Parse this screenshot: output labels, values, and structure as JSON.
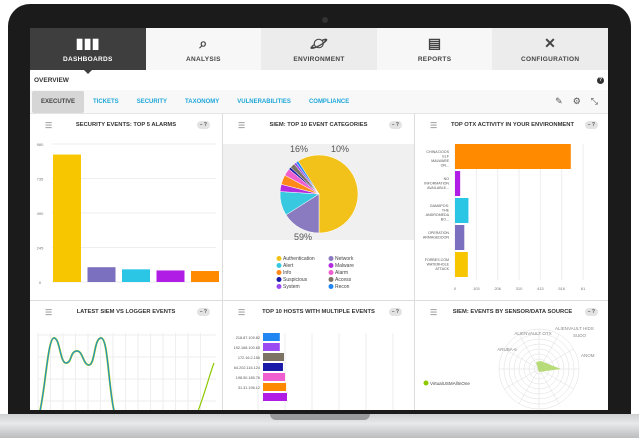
{
  "nav": [
    {
      "label": "DASHBOARDS",
      "icon": "bar-chart-icon",
      "active": true
    },
    {
      "label": "ANALYSIS",
      "icon": "magnifier-chart-icon"
    },
    {
      "label": "ENVIRONMENT",
      "icon": "planet-icon"
    },
    {
      "label": "REPORTS",
      "icon": "report-icon"
    },
    {
      "label": "CONFIGURATION",
      "icon": "tools-icon"
    }
  ],
  "overview": {
    "title": "OVERVIEW",
    "help": "?"
  },
  "subtabs": [
    "EXECUTIVE",
    "TICKETS",
    "SECURITY",
    "TAXONOMY",
    "VULNERABILITIES",
    "COMPLIANCE"
  ],
  "panel_ctl": "– ?",
  "chart_data": [
    {
      "type": "bar",
      "title": "SECURITY EVENTS: TOP 5 ALARMS",
      "ylim": [
        0,
        980
      ],
      "yticks": [
        "0",
        "245",
        "490",
        "735",
        "980"
      ],
      "values": [
        905,
        105,
        90,
        82,
        78
      ],
      "colors": [
        "#f7c600",
        "#7b6fbf",
        "#2bc6e6",
        "#b01ee6",
        "#ff8a00"
      ]
    },
    {
      "type": "pie",
      "title": "SIEM: TOP 10 EVENT CATEGORIES",
      "labels_shown": [
        "59%",
        "16%",
        "10%"
      ],
      "categories": [
        "Authentication",
        "Network",
        "Alert",
        "Malware",
        "Info",
        "Alarm",
        "Suspicious",
        "Access",
        "System",
        "Recon"
      ],
      "values": [
        59,
        16,
        10,
        3,
        4,
        3,
        1,
        2,
        1,
        1
      ],
      "colors": [
        "#f2c21b",
        "#8a7bc0",
        "#38c8e0",
        "#b42ce0",
        "#ff8a1a",
        "#f05fcf",
        "#1a1aa8",
        "#7d7364",
        "#9a4cf2",
        "#1f86f2"
      ]
    },
    {
      "type": "bar",
      "orientation": "horizontal",
      "title": "TOP OTX ACTIVITY IN YOUR ENVIRONMENT",
      "xticks": [
        "0",
        "103",
        "206",
        "310",
        "413",
        "516",
        "61"
      ],
      "xlim": [
        0,
        619
      ],
      "categories": [
        "CHINA DOOS ELF MALWARE ON...",
        "NO INFORMATION AVAILABLE...",
        "GAMAPOS: THE ANDROMEDA BO...",
        "OPERATION ARMAGEDDON",
        "FORBES.COM WATERHOLE ATTACK"
      ],
      "values": [
        560,
        25,
        65,
        45,
        62
      ],
      "colors": [
        "#ff8a00",
        "#b01ee6",
        "#2bc6e6",
        "#7b6fbf",
        "#f7c600"
      ]
    },
    {
      "type": "line",
      "title": "LATEST SIEM VS LOGGER EVENTS"
    },
    {
      "type": "bar",
      "orientation": "horizontal",
      "title": "TOP 10 HOSTS WITH MULTIPLE EVENTS",
      "categories": [
        "218.87.109.82",
        "192.168.100.65",
        "172.16.2.156",
        "64.202.116.124",
        "198.50.185.76",
        "31.31.196.12"
      ],
      "values": [
        16,
        16,
        20,
        19,
        21,
        22
      ],
      "colors": [
        "#1f86f2",
        "#9a4cf2",
        "#7d7364",
        "#1a1aa8",
        "#f05fcf",
        "#ff8a00"
      ]
    },
    {
      "type": "radar",
      "title": "SIEM: EVENTS BY SENSOR/DATA SOURCE",
      "axes": [
        "ALIENVAULT HIDS",
        "SUDO",
        "ANOM",
        "ARUBA-6",
        "ALIENVAULT OTX"
      ],
      "legend": [
        "VirtualUSMAllInOne"
      ]
    }
  ]
}
